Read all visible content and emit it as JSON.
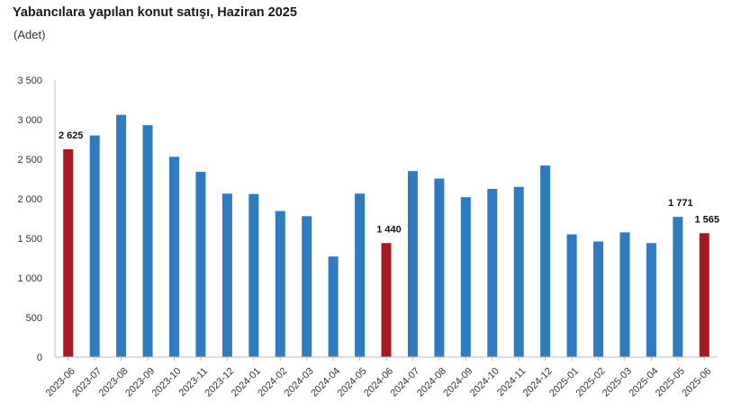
{
  "header": {
    "title": "Yabancılara yapılan konut satışı, Haziran 2025",
    "subtitle": "(Adet)"
  },
  "colors": {
    "default_bar": "#2e7bbf",
    "highlight_bar": "#a51a22",
    "axis": "#bdbdbd"
  },
  "chart_data": {
    "type": "bar",
    "title": "Yabancılara yapılan konut satışı, Haziran 2025",
    "subtitle": "(Adet)",
    "xlabel": "",
    "ylabel": "",
    "ylim": [
      0,
      3500
    ],
    "yticks": [
      0,
      500,
      1000,
      1500,
      2000,
      2500,
      3000,
      3500
    ],
    "ytick_labels": [
      "0",
      "500",
      "1 000",
      "1 500",
      "2 000",
      "2 500",
      "3 000",
      "3 500"
    ],
    "grid": false,
    "legend": "none",
    "categories": [
      "2023-06",
      "2023-07",
      "2023-08",
      "2023-09",
      "2023-10",
      "2023-11",
      "2023-12",
      "2024-01",
      "2024-02",
      "2024-03",
      "2024-04",
      "2024-05",
      "2024-06",
      "2024-07",
      "2024-08",
      "2024-09",
      "2024-10",
      "2024-11",
      "2024-12",
      "2025-01",
      "2025-02",
      "2025-03",
      "2025-04",
      "2025-05",
      "2025-06"
    ],
    "values": [
      2625,
      2800,
      3060,
      2930,
      2530,
      2340,
      2065,
      2060,
      1845,
      1780,
      1270,
      2065,
      1440,
      2350,
      2255,
      2020,
      2125,
      2150,
      2420,
      1550,
      1460,
      1575,
      1440,
      1771,
      1565
    ],
    "highlighted": [
      true,
      false,
      false,
      false,
      false,
      false,
      false,
      false,
      false,
      false,
      false,
      false,
      true,
      false,
      false,
      false,
      false,
      false,
      false,
      false,
      false,
      false,
      false,
      false,
      true
    ],
    "data_labels": [
      {
        "index": 0,
        "text": "2 625"
      },
      {
        "index": 12,
        "text": "1 440"
      },
      {
        "index": 23,
        "text": "1 771"
      },
      {
        "index": 24,
        "text": "1 565"
      }
    ]
  }
}
